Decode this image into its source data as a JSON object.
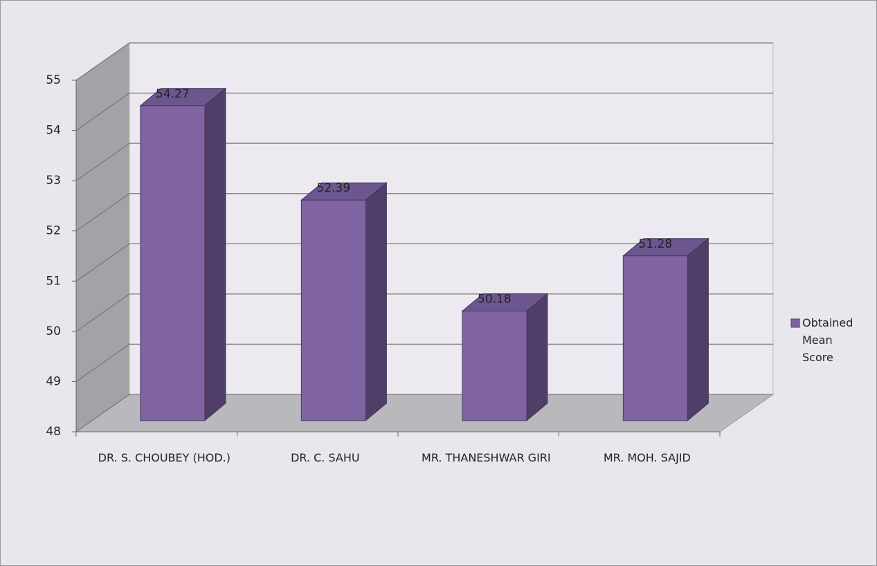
{
  "chart_data": {
    "type": "bar3d",
    "categories": [
      "DR. S. CHOUBEY (HOD.)",
      "DR. C. SAHU",
      "MR. THANESHWAR GIRI",
      "MR. MOH. SAJID"
    ],
    "series": [
      {
        "name": "Obtained Mean Score",
        "color": "#8064a2",
        "values": [
          54.27,
          52.39,
          50.18,
          51.28
        ]
      }
    ],
    "ylim": [
      48,
      55
    ],
    "yticks": [
      48,
      49,
      50,
      51,
      52,
      53,
      54,
      55
    ],
    "grid": true,
    "legend": "right"
  }
}
